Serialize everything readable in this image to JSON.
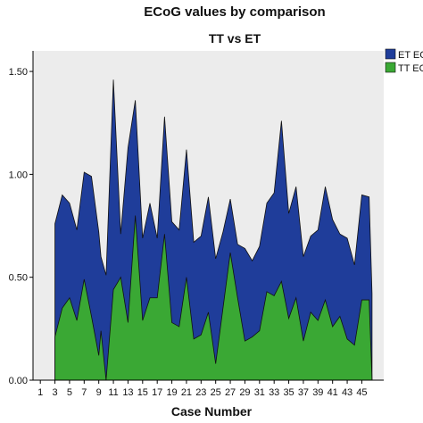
{
  "chart_data": {
    "type": "area",
    "title": "ECoG values by comparison",
    "subtitle": "TT vs ET",
    "xlabel": "Case Number",
    "ylabel": "",
    "x_range": [
      0,
      48
    ],
    "ylim": [
      0,
      1.6
    ],
    "y_ticks": [
      "0.00",
      "0.50",
      "1.00",
      "1.50"
    ],
    "x_ticks": [
      1,
      3,
      5,
      7,
      9,
      11,
      13,
      15,
      17,
      19,
      21,
      23,
      25,
      27,
      29,
      31,
      33,
      35,
      37,
      39,
      41,
      43,
      45
    ],
    "grid": false,
    "legend_position": "top-right",
    "plot_background": "#ececec",
    "x": [
      3,
      4,
      5,
      6,
      7,
      8,
      9,
      9.3,
      10,
      11,
      12,
      13,
      14,
      15,
      16,
      17,
      18,
      19,
      20,
      21,
      22,
      23,
      24,
      25,
      26,
      27,
      28,
      29,
      30,
      31,
      32,
      33,
      34,
      35,
      36,
      37,
      38,
      39,
      40,
      41,
      42,
      43,
      44,
      45,
      46
    ],
    "series": [
      {
        "name": "ET ECoG",
        "color": "#1f3d9a",
        "values": [
          0.76,
          0.9,
          0.86,
          0.73,
          1.01,
          0.99,
          0.72,
          0.6,
          0.51,
          1.46,
          0.71,
          1.13,
          1.36,
          0.69,
          0.86,
          0.69,
          1.28,
          0.77,
          0.73,
          1.12,
          0.67,
          0.7,
          0.89,
          0.59,
          0.72,
          0.88,
          0.66,
          0.64,
          0.58,
          0.65,
          0.86,
          0.91,
          1.26,
          0.81,
          0.94,
          0.6,
          0.7,
          0.73,
          0.94,
          0.78,
          0.71,
          0.69,
          0.56,
          0.9,
          0.89
        ]
      },
      {
        "name": "TT ECoG",
        "color": "#3aa834",
        "values": [
          0.21,
          0.35,
          0.4,
          0.29,
          0.49,
          0.31,
          0.12,
          0.24,
          0.0,
          0.44,
          0.5,
          0.28,
          0.8,
          0.29,
          0.4,
          0.4,
          0.71,
          0.28,
          0.26,
          0.5,
          0.2,
          0.22,
          0.33,
          0.08,
          0.35,
          0.62,
          0.4,
          0.19,
          0.21,
          0.24,
          0.43,
          0.41,
          0.48,
          0.3,
          0.4,
          0.19,
          0.33,
          0.29,
          0.39,
          0.26,
          0.31,
          0.2,
          0.17,
          0.39,
          0.39
        ]
      }
    ],
    "end_x": 46.4,
    "end_values": {
      "ET ECoG": 0.42,
      "TT ECoG": 0.0
    }
  }
}
